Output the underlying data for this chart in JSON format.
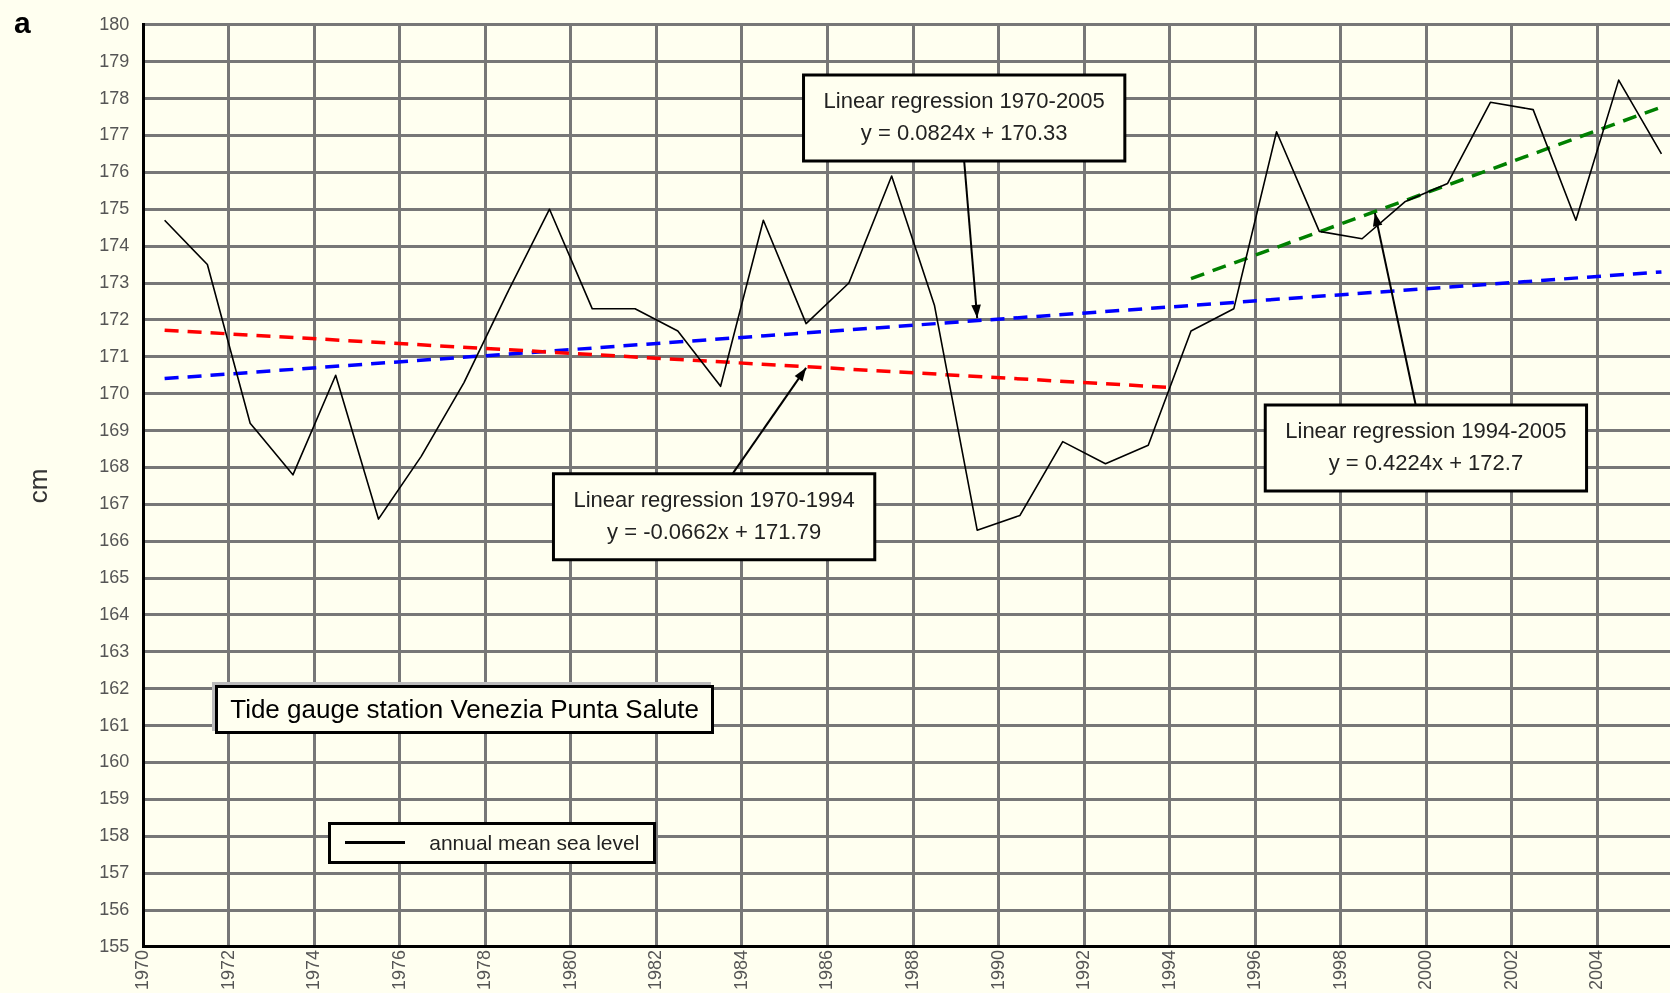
{
  "chart_data": {
    "type": "line",
    "ylabel": "cm",
    "xlim": [
      1970,
      2005.7
    ],
    "xticks": [
      1970,
      1972,
      1974,
      1976,
      1978,
      1980,
      1982,
      1984,
      1986,
      1988,
      1990,
      1992,
      1994,
      1996,
      1998,
      2000,
      2002,
      2004
    ],
    "ylim": [
      155,
      180
    ],
    "yticks": [
      155,
      156,
      157,
      158,
      159,
      160,
      161,
      162,
      163,
      164,
      165,
      166,
      167,
      168,
      169,
      170,
      171,
      172,
      173,
      174,
      175,
      176,
      177,
      178,
      179,
      180
    ],
    "grid": true,
    "legend": "bottom left",
    "marker": "none",
    "series": [
      {
        "name": "annual mean sea level",
        "color": "#000000",
        "line_style": "solid",
        "x": [
          1970.5,
          1971.5,
          1972.5,
          1973.5,
          1974.5,
          1975.5,
          1976.5,
          1977.5,
          1978.5,
          1979.5,
          1980.5,
          1981.5,
          1982.5,
          1983.5,
          1984.5,
          1985.5,
          1986.5,
          1987.5,
          1988.5,
          1989.5,
          1990.5,
          1991.5,
          1992.5,
          1993.5,
          1994.5,
          1995.5,
          1996.5,
          1997.5,
          1998.5,
          1999.5,
          2000.5,
          2001.5,
          2002.5,
          2003.5,
          2004.5,
          2005.5
        ],
        "values": [
          174.7,
          173.5,
          169.2,
          167.8,
          170.5,
          166.6,
          168.3,
          170.3,
          172.7,
          175.0,
          172.3,
          172.3,
          171.7,
          170.2,
          174.7,
          171.9,
          173.0,
          175.9,
          172.4,
          166.3,
          166.7,
          168.7,
          168.1,
          168.6,
          171.7,
          172.3,
          177.1,
          174.4,
          174.2,
          175.2,
          175.7,
          177.9,
          177.7,
          174.7,
          178.5,
          176.5
        ]
      },
      {
        "type": "line",
        "color": "#ff0000",
        "line_style": "dashed",
        "x": [
          1970.5,
          1994.0
        ],
        "values": [
          171.72,
          170.17
        ]
      },
      {
        "type": "line",
        "color": "#0000ff",
        "line_style": "dashed",
        "x": [
          1970.5,
          2005.5
        ],
        "values": [
          170.41,
          173.3
        ]
      },
      {
        "type": "line",
        "color": "#008000",
        "line_style": "dashed",
        "x": [
          1994.5,
          2005.5
        ],
        "values": [
          173.12,
          177.77
        ]
      }
    ],
    "annotations": [
      "a",
      {
        "text": "Linear regression 1970-2005\ny = 0.0824x + 170.33",
        "x": 1989.5,
        "y": 172.05
      },
      {
        "text": "Linear regression 1970-1994\ny = -0.0662x + 171.79",
        "x": 1985.5,
        "y": 170.7
      },
      {
        "text": "Linear regression 1994-2005\ny = 0.4224x + 172.7",
        "x": 1998.8,
        "y": 174.9
      },
      "Tide gauge station Venezia Punta Salute"
    ]
  }
}
